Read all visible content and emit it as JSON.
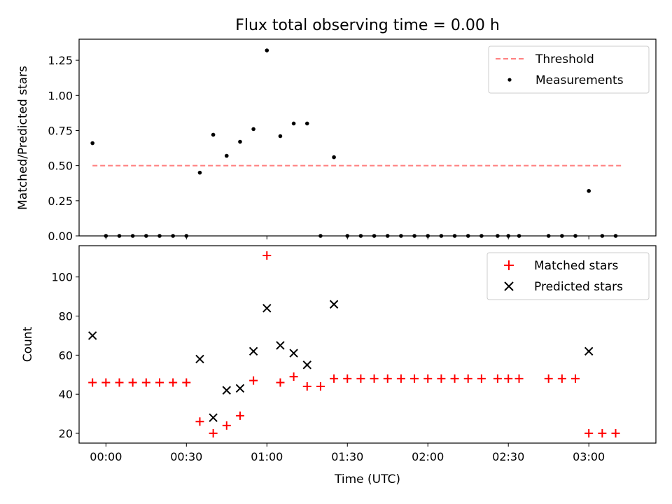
{
  "chart_data": [
    {
      "type": "scatter",
      "title": "Flux total observing time = 0.00 h",
      "xlabel": "",
      "ylabel": "Matched/Predicted stars",
      "xlim": [
        -10,
        205
      ],
      "ylim": [
        0,
        1.4
      ],
      "yticks": [
        0,
        0.25,
        0.5,
        0.75,
        1.0,
        1.25
      ],
      "ytick_labels": [
        "0.00",
        "0.25",
        "0.50",
        "0.75",
        "1.00",
        "1.25"
      ],
      "xticks": [
        0,
        30,
        60,
        90,
        120,
        150,
        180
      ],
      "xtick_labels": [],
      "legend_position": "top-right",
      "series": [
        {
          "name": "Threshold",
          "kind": "dashed-line",
          "color": "#ff8080",
          "x": [
            -5,
            192.5
          ],
          "y": [
            0.5,
            0.5
          ]
        },
        {
          "name": "Measurements",
          "kind": "dot",
          "color": "#000000",
          "x": [
            -5,
            0,
            5,
            10,
            15,
            20,
            25,
            30,
            35,
            40,
            45,
            50,
            55,
            60,
            65,
            70,
            75,
            80,
            85,
            90,
            95,
            100,
            105,
            110,
            115,
            120,
            125,
            130,
            135,
            140,
            146,
            150,
            154,
            165,
            170,
            175,
            180,
            185,
            190
          ],
          "y": [
            0.66,
            0,
            0,
            0,
            0,
            0,
            0,
            0,
            0.45,
            0.72,
            0.57,
            0.67,
            0.76,
            1.32,
            0.71,
            0.8,
            0.8,
            0,
            0.56,
            0,
            0,
            0,
            0,
            0,
            0,
            0,
            0,
            0,
            0,
            0,
            0,
            0,
            0,
            0,
            0,
            0,
            0.32,
            0,
            0
          ]
        }
      ]
    },
    {
      "type": "scatter",
      "title": "",
      "xlabel": "Time (UTC)",
      "ylabel": "Count",
      "xlim": [
        -10,
        205
      ],
      "ylim": [
        15,
        116
      ],
      "yticks": [
        20,
        40,
        60,
        80,
        100
      ],
      "ytick_labels": [
        "20",
        "40",
        "60",
        "80",
        "100"
      ],
      "xticks": [
        0,
        30,
        60,
        90,
        120,
        150,
        180
      ],
      "xtick_labels": [
        "00:00",
        "00:30",
        "01:00",
        "01:30",
        "02:00",
        "02:30",
        "03:00"
      ],
      "legend_position": "top-right",
      "series": [
        {
          "name": "Matched stars",
          "kind": "plus",
          "color": "#ff0000",
          "x": [
            -5,
            0,
            5,
            10,
            15,
            20,
            25,
            30,
            35,
            40,
            45,
            50,
            55,
            60,
            65,
            70,
            75,
            80,
            85,
            90,
            95,
            100,
            105,
            110,
            115,
            120,
            125,
            130,
            135,
            140,
            146,
            150,
            154,
            165,
            170,
            175,
            180,
            185,
            190
          ],
          "y": [
            46,
            46,
            46,
            46,
            46,
            46,
            46,
            46,
            26,
            20,
            24,
            29,
            47,
            111,
            46,
            49,
            44,
            44,
            48,
            48,
            48,
            48,
            48,
            48,
            48,
            48,
            48,
            48,
            48,
            48,
            48,
            48,
            48,
            48,
            48,
            48,
            20,
            20,
            20
          ]
        },
        {
          "name": "Predicted stars",
          "kind": "x",
          "color": "#000000",
          "x": [
            -5,
            35,
            40,
            45,
            50,
            55,
            60,
            65,
            70,
            75,
            85,
            180
          ],
          "y": [
            70,
            58,
            28,
            42,
            43,
            62,
            84,
            65,
            61,
            55,
            86,
            62
          ]
        }
      ]
    }
  ]
}
